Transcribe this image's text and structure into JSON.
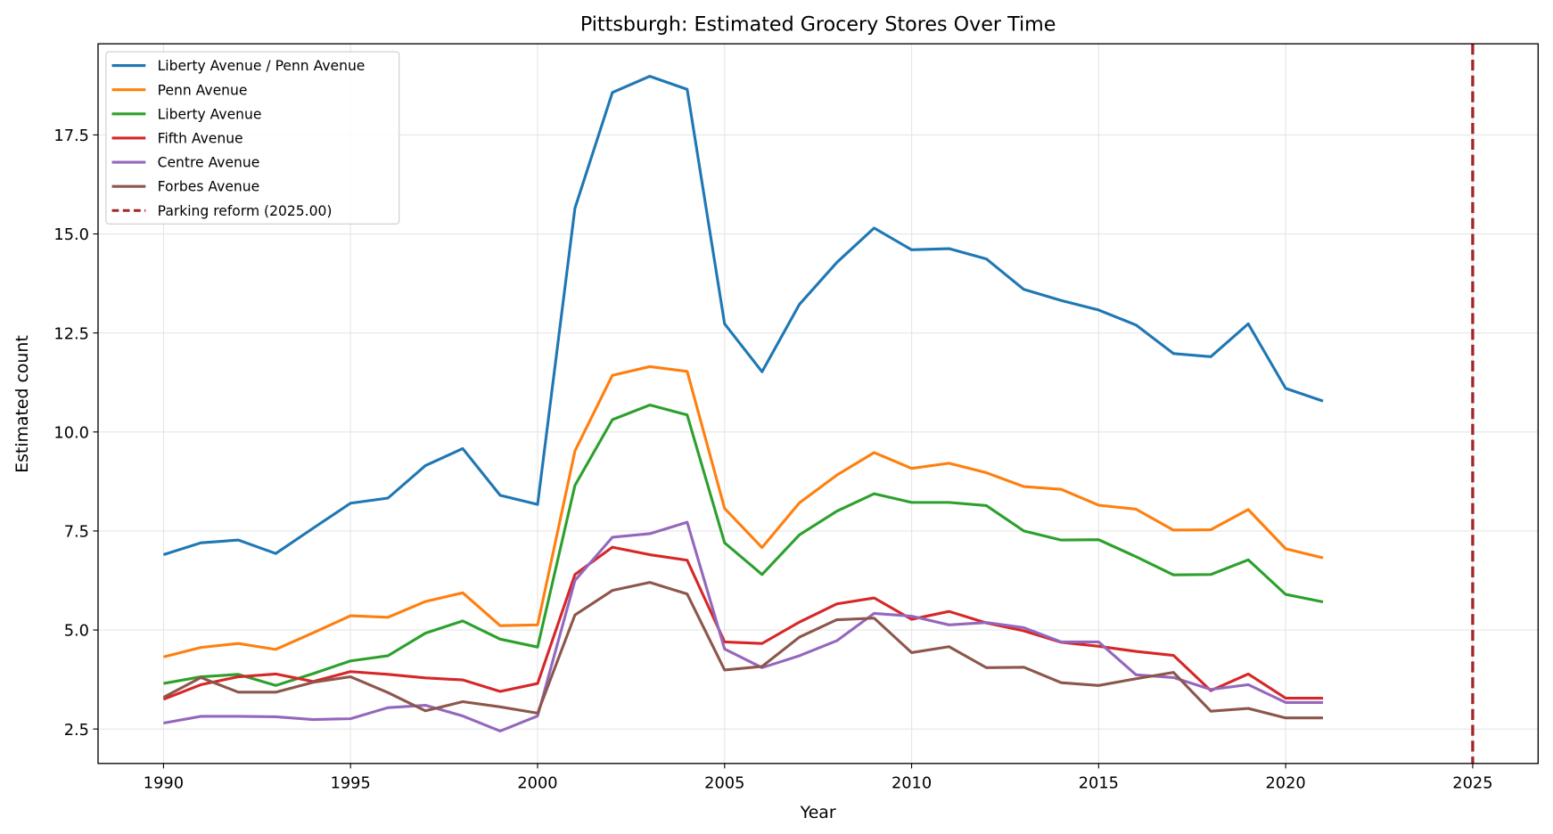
{
  "chart_data": {
    "type": "line",
    "title": "Pittsburgh: Estimated Grocery Stores Over Time",
    "xlabel": "Year",
    "ylabel": "Estimated count",
    "xlim": [
      1988.25,
      2026.75
    ],
    "ylim": [
      1.63,
      19.8
    ],
    "xticks": [
      1990,
      1995,
      2000,
      2005,
      2010,
      2015,
      2020,
      2025
    ],
    "yticks": [
      "2.5",
      "5.0",
      "7.5",
      "10.0",
      "12.5",
      "15.0",
      "17.5"
    ],
    "grid": true,
    "legend_position": "top-left",
    "x": [
      1990,
      1991,
      1992,
      1993,
      1994,
      1995,
      1996,
      1997,
      1998,
      1999,
      2000,
      2001,
      2002,
      2003,
      2004,
      2005,
      2006,
      2007,
      2008,
      2009,
      2010,
      2011,
      2012,
      2013,
      2014,
      2015,
      2016,
      2017,
      2018,
      2019,
      2020,
      2021
    ],
    "series": [
      {
        "name": "Liberty Avenue / Penn Avenue",
        "color": "#1f77b4",
        "values": [
          6.9,
          7.2,
          7.27,
          6.93,
          7.57,
          8.2,
          8.33,
          9.15,
          9.58,
          8.4,
          8.17,
          15.65,
          18.57,
          18.98,
          18.65,
          12.73,
          11.52,
          13.22,
          14.28,
          15.15,
          14.6,
          14.63,
          14.37,
          13.6,
          13.32,
          13.08,
          12.7,
          11.98,
          11.9,
          12.73,
          11.1,
          10.78
        ]
      },
      {
        "name": "Penn Avenue",
        "color": "#ff7f0e",
        "values": [
          4.32,
          4.56,
          4.66,
          4.51,
          4.93,
          5.36,
          5.32,
          5.72,
          5.94,
          5.11,
          5.13,
          9.52,
          11.43,
          11.65,
          11.53,
          8.07,
          7.08,
          8.21,
          8.91,
          9.48,
          9.08,
          9.21,
          8.97,
          8.62,
          8.55,
          8.15,
          8.05,
          7.52,
          7.53,
          8.04,
          7.05,
          6.82
        ]
      },
      {
        "name": "Liberty Avenue",
        "color": "#2ca02c",
        "values": [
          3.65,
          3.82,
          3.88,
          3.6,
          3.9,
          4.22,
          4.35,
          4.92,
          5.23,
          4.77,
          4.57,
          8.65,
          10.31,
          10.68,
          10.43,
          7.2,
          6.4,
          7.4,
          8.0,
          8.44,
          8.22,
          8.22,
          8.14,
          7.5,
          7.27,
          7.28,
          6.85,
          6.39,
          6.4,
          6.77,
          5.9,
          5.71
        ]
      },
      {
        "name": "Fifth Avenue",
        "color": "#d62728",
        "values": [
          3.25,
          3.62,
          3.82,
          3.89,
          3.7,
          3.95,
          3.88,
          3.79,
          3.74,
          3.45,
          3.65,
          6.4,
          7.09,
          6.9,
          6.76,
          4.7,
          4.66,
          5.2,
          5.66,
          5.81,
          5.27,
          5.47,
          5.18,
          4.98,
          4.69,
          4.59,
          4.46,
          4.36,
          3.47,
          3.89,
          3.28,
          3.28
        ]
      },
      {
        "name": "Centre Avenue",
        "color": "#9467bd",
        "values": [
          2.65,
          2.82,
          2.82,
          2.81,
          2.74,
          2.76,
          3.04,
          3.1,
          2.83,
          2.45,
          2.83,
          6.25,
          7.34,
          7.43,
          7.72,
          4.52,
          4.05,
          4.35,
          4.73,
          5.42,
          5.35,
          5.13,
          5.19,
          5.06,
          4.7,
          4.7,
          3.87,
          3.8,
          3.5,
          3.62,
          3.17,
          3.17
        ]
      },
      {
        "name": "Forbes Avenue",
        "color": "#8c564b",
        "values": [
          3.3,
          3.8,
          3.43,
          3.43,
          3.68,
          3.82,
          3.42,
          2.96,
          3.19,
          3.06,
          2.9,
          5.38,
          6.0,
          6.2,
          5.91,
          3.99,
          4.08,
          4.82,
          5.26,
          5.3,
          4.43,
          4.58,
          4.05,
          4.06,
          3.67,
          3.6,
          3.77,
          3.93,
          2.95,
          3.02,
          2.78,
          2.78
        ]
      }
    ],
    "vline": {
      "name": "Parking reform (2025.00)",
      "x": 2025,
      "color": "#a0262a",
      "style": "dashed"
    }
  }
}
